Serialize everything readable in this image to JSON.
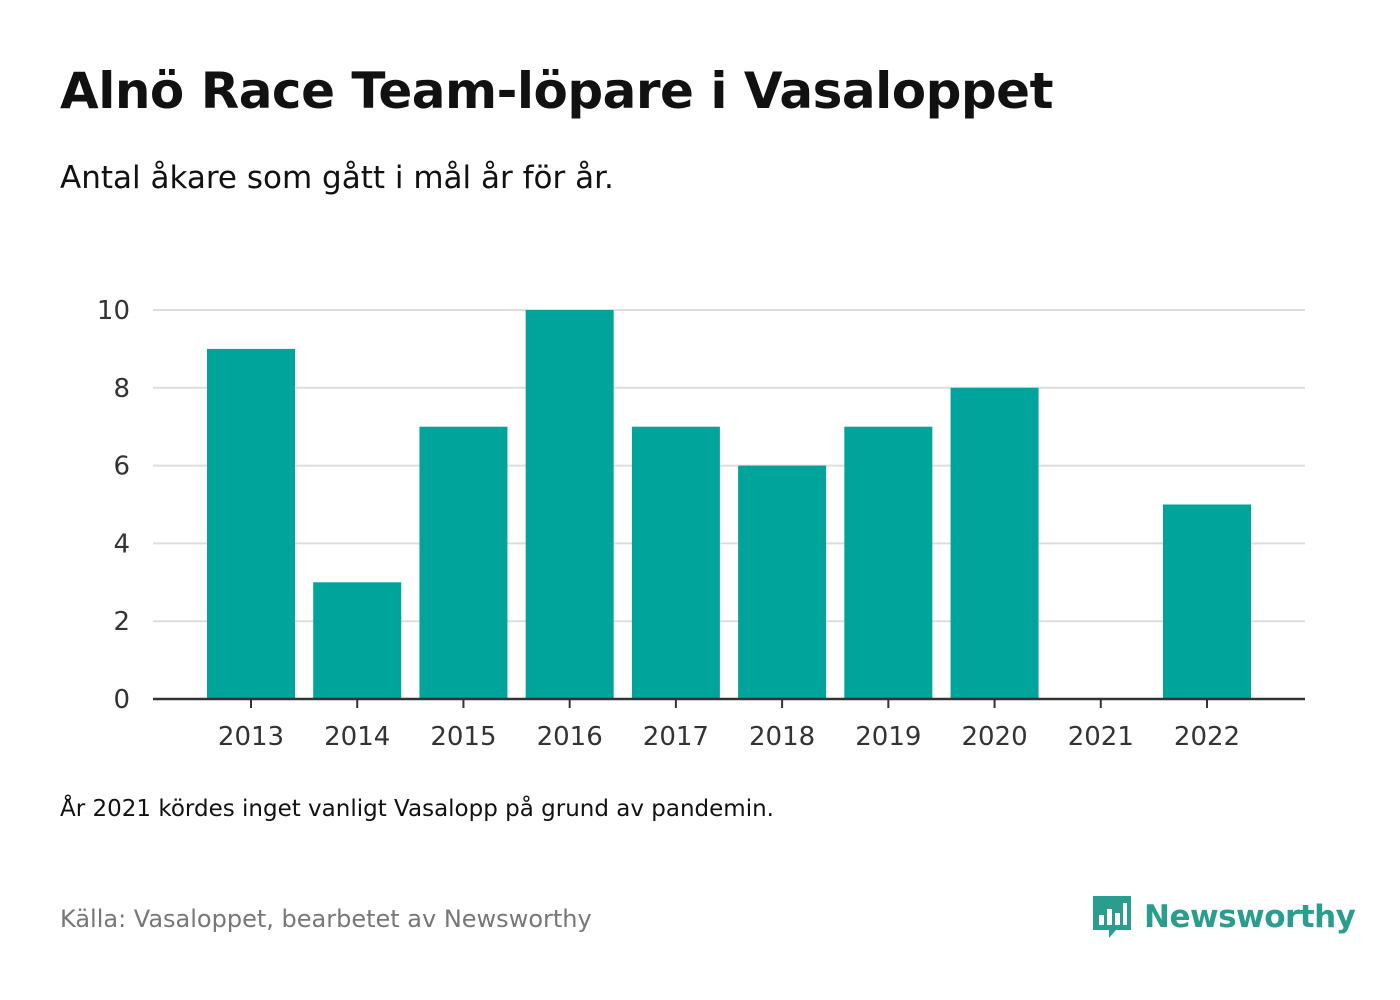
{
  "header": {
    "title": "Alnö Race Team-löpare i Vasaloppet",
    "subtitle": "Antal åkare som gått i mål år för år."
  },
  "footer": {
    "note": "År 2021 kördes inget vanligt Vasalopp på grund av pandemin.",
    "source": "Källa: Vasaloppet, bearbetet av Newsworthy",
    "brand": "Newsworthy",
    "brand_icon": "bar-chart-speech-bubble-icon"
  },
  "colors": {
    "bar": "#00a49b",
    "grid": "#dddddd",
    "axis": "#333333",
    "brand": "#2a9d8f"
  },
  "chart_data": {
    "type": "bar",
    "title": "Alnö Race Team-löpare i Vasaloppet",
    "subtitle": "Antal åkare som gått i mål år för år.",
    "xlabel": "",
    "ylabel": "",
    "categories": [
      "2013",
      "2014",
      "2015",
      "2016",
      "2017",
      "2018",
      "2019",
      "2020",
      "2021",
      "2022"
    ],
    "values": [
      9,
      3,
      7,
      10,
      7,
      6,
      7,
      8,
      null,
      5
    ],
    "ylim": [
      0,
      10
    ],
    "yticks": [
      0,
      2,
      4,
      6,
      8,
      10
    ],
    "grid": true,
    "legend": "none"
  }
}
